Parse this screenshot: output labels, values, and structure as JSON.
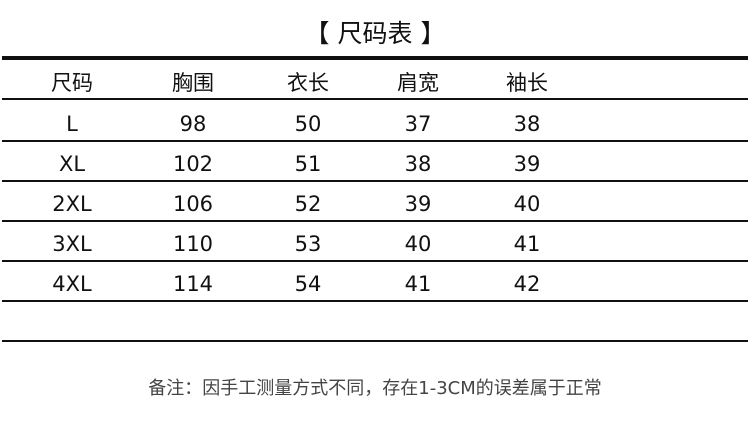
{
  "title": "【 尺码表 】",
  "table": {
    "headers": [
      "尺码",
      "胸围",
      "衣长",
      "肩宽",
      "袖长"
    ],
    "rows": [
      [
        "L",
        "98",
        "50",
        "37",
        "38"
      ],
      [
        "XL",
        "102",
        "51",
        "38",
        "39"
      ],
      [
        "2XL",
        "106",
        "52",
        "39",
        "40"
      ],
      [
        "3XL",
        "110",
        "53",
        "40",
        "41"
      ],
      [
        "4XL",
        "114",
        "54",
        "41",
        "42"
      ]
    ]
  },
  "note": "备注：因手工测量方式不同，存在1-3CM的误差属于正常"
}
